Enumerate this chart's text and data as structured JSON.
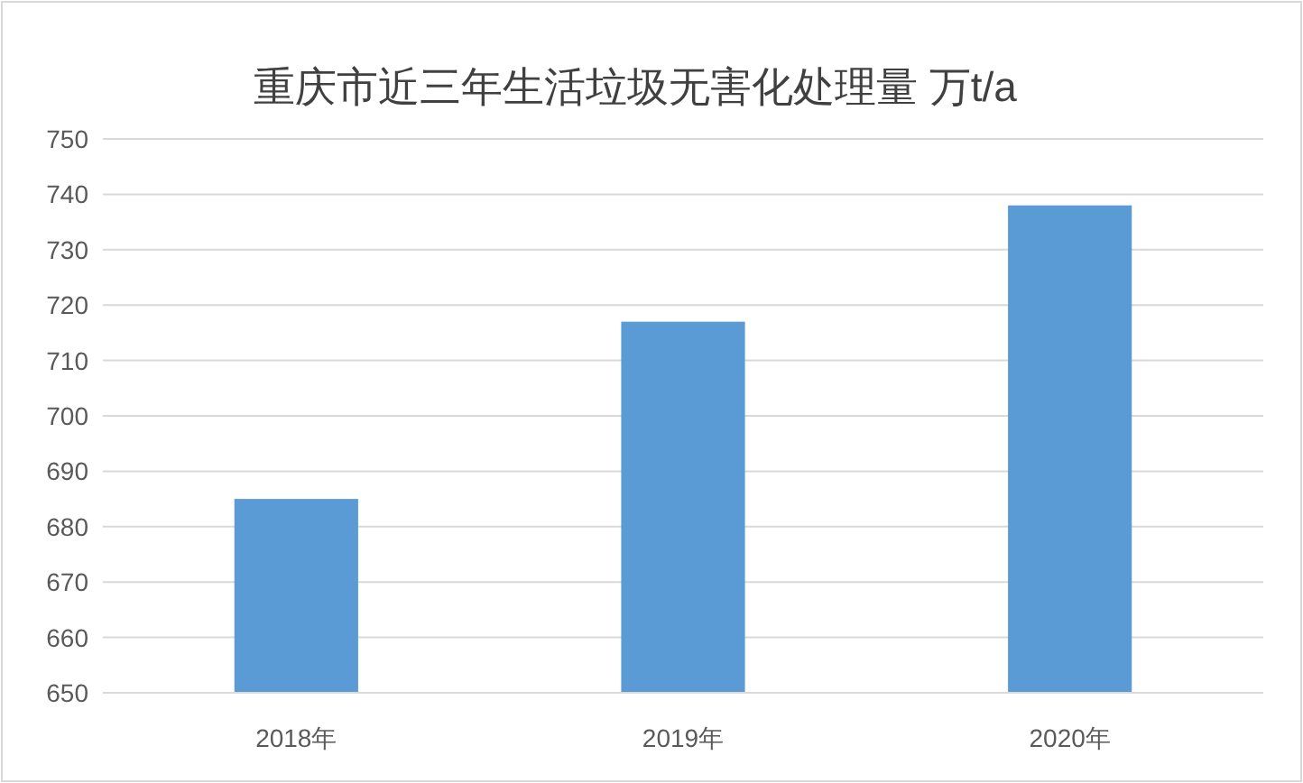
{
  "chart_data": {
    "type": "bar",
    "title": "重庆市近三年生活垃圾无害化处理量 万t/a",
    "categories": [
      "2018年",
      "2019年",
      "2020年"
    ],
    "values": [
      685,
      717,
      738
    ],
    "color": "#5b9bd5",
    "ylim": [
      650,
      750
    ],
    "yticks": [
      650,
      660,
      670,
      680,
      690,
      700,
      710,
      720,
      730,
      740,
      750
    ],
    "grid": "y"
  }
}
